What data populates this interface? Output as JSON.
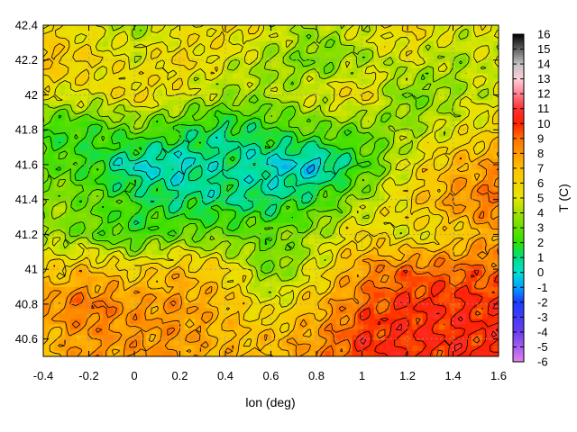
{
  "chart_data": {
    "type": "heatmap",
    "title": "",
    "xlabel": "lon (deg)",
    "ylabel": "",
    "colorbar_label": "T (C)",
    "xlim": [
      -0.4,
      1.6
    ],
    "ylim": [
      40.5,
      42.4
    ],
    "clim": [
      -6,
      16
    ],
    "x_ticks": [
      "-0.4",
      "-0.2",
      "0",
      "0.2",
      "0.4",
      "0.6",
      "0.8",
      "1",
      "1.2",
      "1.4",
      "1.6"
    ],
    "y_ticks": [
      "40.6",
      "40.8",
      "41",
      "41.2",
      "41.4",
      "41.6",
      "41.8",
      "42",
      "42.2",
      "42.4"
    ],
    "colorbar_ticks": [
      "16",
      "15",
      "14",
      "13",
      "12",
      "11",
      "10",
      "9",
      "8",
      "7",
      "6",
      "5",
      "4",
      "3",
      "2",
      "1",
      "0",
      "-1",
      "-2",
      "-3",
      "-4",
      "-5",
      "-6"
    ],
    "grid": true,
    "contour_interval": 1,
    "colormap": [
      {
        "value": -6,
        "color": "#e080f0"
      },
      {
        "value": -4,
        "color": "#6a3cf0"
      },
      {
        "value": -2,
        "color": "#1a3cff"
      },
      {
        "value": -1,
        "color": "#00a0ff"
      },
      {
        "value": 0,
        "color": "#00e0d0"
      },
      {
        "value": 1,
        "color": "#00dd80"
      },
      {
        "value": 2,
        "color": "#30e000"
      },
      {
        "value": 4,
        "color": "#a0e000"
      },
      {
        "value": 5,
        "color": "#e6e600"
      },
      {
        "value": 7,
        "color": "#ffc000"
      },
      {
        "value": 9,
        "color": "#ff7000"
      },
      {
        "value": 10,
        "color": "#ff2000"
      },
      {
        "value": 11,
        "color": "#ff3030"
      },
      {
        "value": 12,
        "color": "#ff8090"
      },
      {
        "value": 13,
        "color": "#ffd0d8"
      },
      {
        "value": 14,
        "color": "#c0c0c0"
      },
      {
        "value": 16,
        "color": "#000000"
      }
    ],
    "temperature_field": {
      "lon": [
        -0.4,
        -0.2,
        0.0,
        0.2,
        0.4,
        0.6,
        0.8,
        1.0,
        1.2,
        1.4,
        1.6
      ],
      "lat": [
        42.4,
        42.2,
        42.0,
        41.8,
        41.6,
        41.4,
        41.2,
        41.0,
        40.8,
        40.6
      ],
      "values": [
        [
          6,
          5,
          4,
          5,
          6,
          5,
          4,
          5,
          6,
          5,
          5
        ],
        [
          7,
          6,
          5,
          6,
          5,
          4,
          3,
          4,
          5,
          4,
          5
        ],
        [
          5,
          5,
          6,
          5,
          4,
          4,
          5,
          6,
          3,
          4,
          5
        ],
        [
          2,
          2,
          3,
          2,
          1,
          2,
          3,
          3,
          4,
          5,
          6
        ],
        [
          3,
          2,
          0,
          0,
          1,
          0,
          -0.5,
          2,
          5,
          7,
          8
        ],
        [
          4,
          3,
          2,
          1,
          1,
          1,
          2,
          4,
          6,
          8,
          9
        ],
        [
          4,
          3,
          2,
          3,
          3,
          3,
          4,
          6,
          5,
          6,
          8
        ],
        [
          6,
          7,
          6,
          7,
          6,
          3,
          5,
          8,
          9,
          9,
          9
        ],
        [
          8,
          9,
          8,
          8,
          7,
          5,
          7,
          9,
          10,
          10,
          10
        ],
        [
          7,
          8,
          8,
          8,
          7,
          7,
          8,
          10,
          10,
          10,
          10
        ]
      ]
    }
  }
}
